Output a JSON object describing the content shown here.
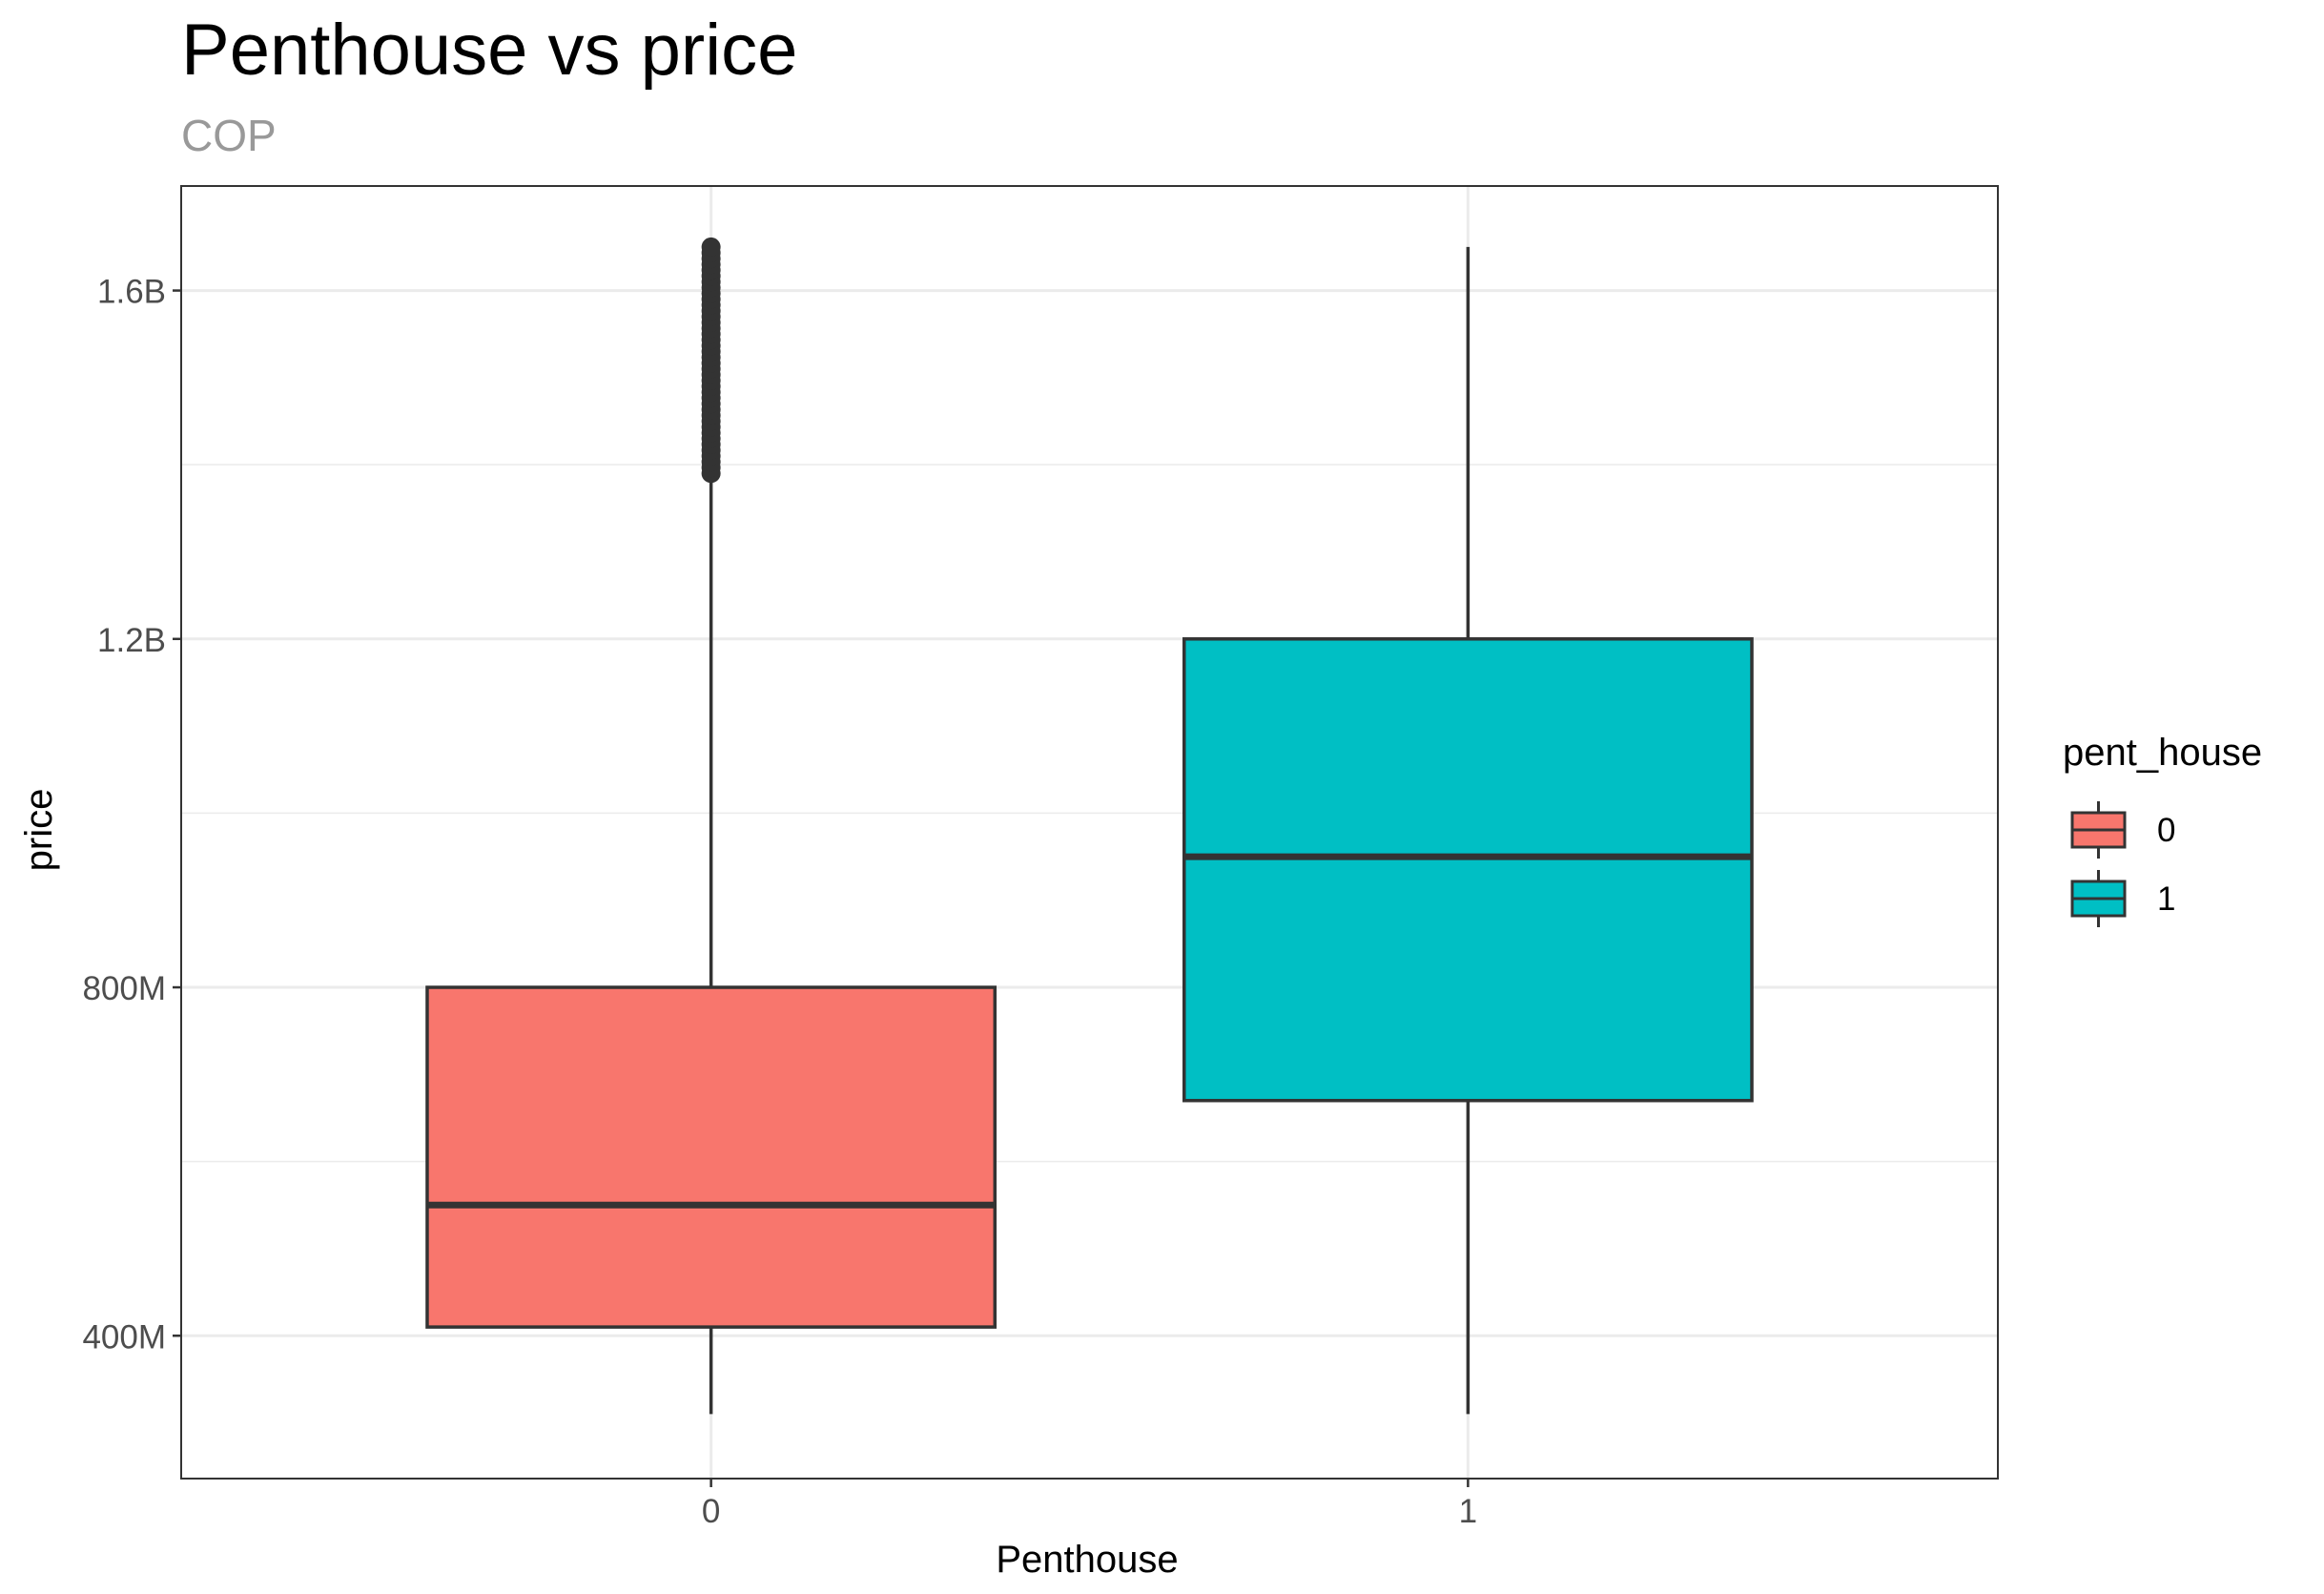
{
  "chart_data": {
    "type": "boxplot",
    "title": "Penthouse vs price",
    "subtitle": "COP",
    "xlabel": "Penthouse",
    "ylabel": "price",
    "categories": [
      "0",
      "1"
    ],
    "y_ticks": [
      {
        "value": 400000000,
        "label": "400M"
      },
      {
        "value": 800000000,
        "label": "800M"
      },
      {
        "value": 1200000000,
        "label": "1.2B"
      },
      {
        "value": 1600000000,
        "label": "1.6B"
      }
    ],
    "y_minor_ticks": [
      600000000,
      1000000000,
      1400000000
    ],
    "ylim": [
      236000000,
      1720000000
    ],
    "grid": true,
    "legend": {
      "title": "pent_house",
      "placement": "right",
      "entries": [
        "0",
        "1"
      ]
    },
    "boxes": [
      {
        "category": "0",
        "fill": "#F8766D",
        "whisker_low": 310000000,
        "q1": 410000000,
        "median": 550000000,
        "q3": 800000000,
        "whisker_high": 1390000000,
        "outliers_low": 1390000000,
        "outliers_high": 1650000000,
        "outlier_count": 40
      },
      {
        "category": "1",
        "fill": "#00BFC4",
        "whisker_low": 310000000,
        "q1": 670000000,
        "median": 950000000,
        "q3": 1200000000,
        "whisker_high": 1650000000,
        "outliers_low": null,
        "outliers_high": null,
        "outlier_count": 0
      }
    ]
  }
}
